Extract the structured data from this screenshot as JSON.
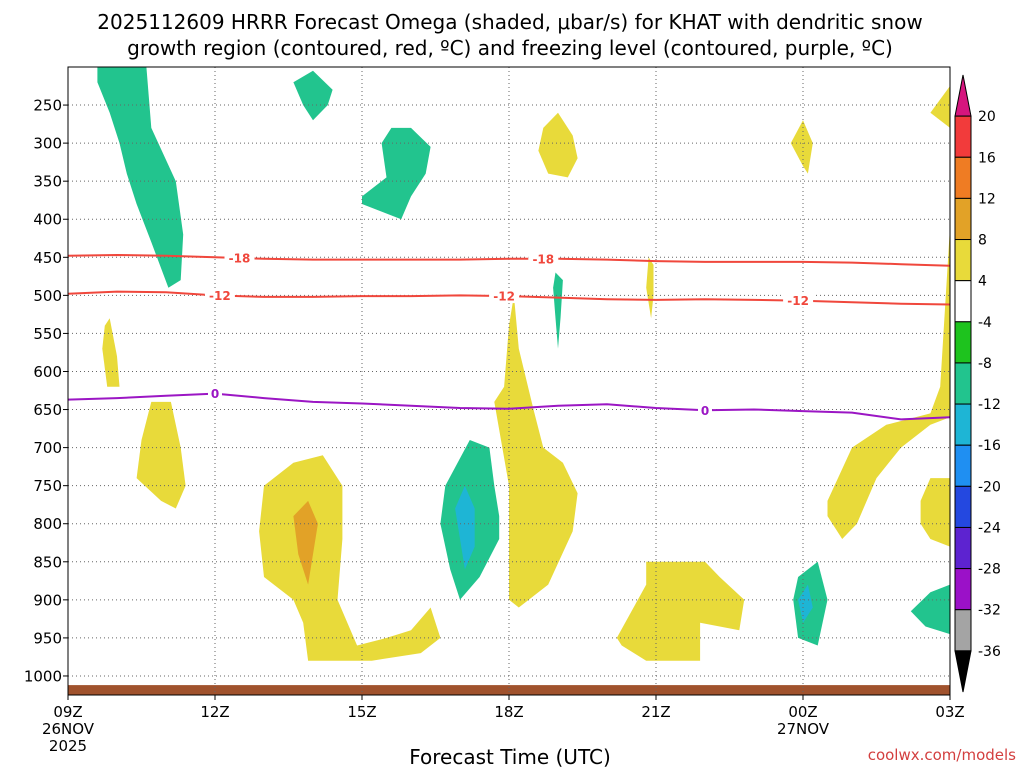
{
  "chart_data": {
    "type": "contour",
    "title_lines": [
      "2025112609 HRRR Forecast Omega (shaded, μbar/s) for KHAT with dendritic snow",
      "growth region (contoured, red, ºC) and freezing level (contoured, purple, ºC)"
    ],
    "xlabel": "Forecast Time (UTC)",
    "credit": "coolwx.com/models",
    "x_range_hours": [
      0,
      18
    ],
    "x_ticks": [
      {
        "hour": 0,
        "lines": [
          "09Z",
          "26NOV",
          "2025"
        ]
      },
      {
        "hour": 3,
        "lines": [
          "12Z"
        ]
      },
      {
        "hour": 6,
        "lines": [
          "15Z"
        ]
      },
      {
        "hour": 9,
        "lines": [
          "18Z"
        ]
      },
      {
        "hour": 12,
        "lines": [
          "21Z"
        ]
      },
      {
        "hour": 15,
        "lines": [
          "00Z",
          "27NOV"
        ]
      },
      {
        "hour": 18,
        "lines": [
          "03Z"
        ]
      }
    ],
    "y_axis": {
      "unit": "hPa",
      "range": [
        1025,
        200
      ],
      "ticks": [
        250,
        300,
        350,
        400,
        450,
        500,
        550,
        600,
        650,
        700,
        750,
        800,
        850,
        900,
        950,
        1000
      ]
    },
    "colorbar": {
      "levels": [
        20,
        16,
        12,
        8,
        4,
        -4,
        -8,
        -12,
        -16,
        -20,
        -24,
        -28,
        -32,
        -36
      ],
      "colors": [
        "#d6157e",
        "#f23b3b",
        "#ef7c23",
        "#e2a227",
        "#e8da3a",
        "#ffffff",
        "#1ec31e",
        "#22c48e",
        "#1eb5d5",
        "#1f8ff2",
        "#2448e0",
        "#5d23d0",
        "#9b11c8",
        "#a4a4a4",
        "#000000"
      ],
      "extend": "both"
    },
    "lines": [
      {
        "name": "-18 C isotherm",
        "color": "#f0473c",
        "label": "-18",
        "points": [
          [
            0,
            448
          ],
          [
            1,
            447
          ],
          [
            2,
            448
          ],
          [
            3,
            450
          ],
          [
            4,
            452
          ],
          [
            5,
            453
          ],
          [
            6,
            453
          ],
          [
            7,
            453
          ],
          [
            8,
            453
          ],
          [
            9,
            452
          ],
          [
            10,
            452
          ],
          [
            11,
            453
          ],
          [
            12,
            455
          ],
          [
            13,
            456
          ],
          [
            14,
            456
          ],
          [
            15,
            456
          ],
          [
            16,
            457
          ],
          [
            17,
            459
          ],
          [
            18,
            461
          ]
        ],
        "label_hours": [
          3.5,
          9.7
        ]
      },
      {
        "name": "-12 C isotherm",
        "color": "#f0473c",
        "label": "-12",
        "points": [
          [
            0,
            498
          ],
          [
            1,
            495
          ],
          [
            2,
            496
          ],
          [
            3,
            500
          ],
          [
            4,
            502
          ],
          [
            5,
            502
          ],
          [
            6,
            501
          ],
          [
            7,
            501
          ],
          [
            8,
            500
          ],
          [
            9,
            501
          ],
          [
            10,
            503
          ],
          [
            11,
            505
          ],
          [
            12,
            506
          ],
          [
            13,
            505
          ],
          [
            14,
            506
          ],
          [
            15,
            507
          ],
          [
            16,
            509
          ],
          [
            17,
            511
          ],
          [
            18,
            512
          ]
        ],
        "label_hours": [
          3.1,
          8.9,
          14.9
        ]
      },
      {
        "name": "0 C freezing level",
        "color": "#9b16c4",
        "label": "0",
        "points": [
          [
            0,
            637
          ],
          [
            1,
            635
          ],
          [
            2,
            632
          ],
          [
            3,
            629
          ],
          [
            4,
            635
          ],
          [
            5,
            640
          ],
          [
            6,
            642
          ],
          [
            7,
            645
          ],
          [
            8,
            648
          ],
          [
            9,
            649
          ],
          [
            10,
            645
          ],
          [
            11,
            643
          ],
          [
            12,
            648
          ],
          [
            13,
            651
          ],
          [
            14,
            650
          ],
          [
            15,
            652
          ],
          [
            16,
            654
          ],
          [
            17,
            663
          ],
          [
            18,
            660
          ]
        ],
        "label_hours": [
          3.0,
          13.0
        ]
      }
    ],
    "omega_regions": [
      {
        "level": -8,
        "points": [
          [
            0.6,
            200
          ],
          [
            1.6,
            200
          ],
          [
            1.7,
            280
          ],
          [
            2.2,
            350
          ],
          [
            2.35,
            420
          ],
          [
            2.3,
            480
          ],
          [
            2.05,
            490
          ],
          [
            1.7,
            430
          ],
          [
            1.4,
            380
          ],
          [
            1.2,
            340
          ],
          [
            1.05,
            300
          ],
          [
            0.85,
            260
          ],
          [
            0.6,
            220
          ]
        ]
      },
      {
        "level": -8,
        "points": [
          [
            4.6,
            220
          ],
          [
            5.0,
            205
          ],
          [
            5.4,
            230
          ],
          [
            5.3,
            250
          ],
          [
            5.0,
            270
          ],
          [
            4.8,
            250
          ]
        ]
      },
      {
        "level": -8,
        "points": [
          [
            6.0,
            370
          ],
          [
            6.5,
            345
          ],
          [
            6.4,
            300
          ],
          [
            6.6,
            280
          ],
          [
            7.0,
            280
          ],
          [
            7.4,
            305
          ],
          [
            7.3,
            340
          ],
          [
            7.0,
            370
          ],
          [
            6.8,
            400
          ],
          [
            6.4,
            390
          ],
          [
            6.0,
            380
          ]
        ]
      },
      {
        "level": -8,
        "points": [
          [
            17.2,
            915
          ],
          [
            17.6,
            890
          ],
          [
            18,
            880
          ],
          [
            18,
            945
          ],
          [
            17.5,
            935
          ]
        ]
      },
      {
        "level": -8,
        "points": [
          [
            9.95,
            470
          ],
          [
            10.1,
            480
          ],
          [
            10.05,
            530
          ],
          [
            10.0,
            570
          ],
          [
            9.95,
            530
          ],
          [
            9.9,
            490
          ]
        ]
      },
      {
        "level": -8,
        "points": [
          [
            8.8,
            790
          ],
          [
            8.7,
            750
          ],
          [
            8.6,
            700
          ],
          [
            8.2,
            690
          ],
          [
            7.7,
            750
          ],
          [
            7.6,
            800
          ],
          [
            7.8,
            860
          ],
          [
            8.0,
            900
          ],
          [
            8.4,
            870
          ],
          [
            8.8,
            820
          ]
        ]
      },
      {
        "level": -12,
        "points": [
          [
            8.1,
            750
          ],
          [
            7.9,
            780
          ],
          [
            8.0,
            820
          ],
          [
            8.1,
            860
          ],
          [
            8.3,
            830
          ],
          [
            8.3,
            780
          ]
        ]
      },
      {
        "level": -8,
        "points": [
          [
            14.9,
            870
          ],
          [
            15.3,
            850
          ],
          [
            15.5,
            900
          ],
          [
            15.3,
            960
          ],
          [
            14.9,
            950
          ],
          [
            14.8,
            900
          ]
        ]
      },
      {
        "level": -12,
        "points": [
          [
            14.9,
            900
          ],
          [
            15.1,
            880
          ],
          [
            15.2,
            910
          ],
          [
            15.0,
            930
          ]
        ]
      },
      {
        "level": 4,
        "points": [
          [
            0.75,
            540
          ],
          [
            0.85,
            530
          ],
          [
            1.0,
            580
          ],
          [
            1.05,
            620
          ],
          [
            0.8,
            620
          ],
          [
            0.7,
            570
          ]
        ]
      },
      {
        "level": 4,
        "points": [
          [
            1.5,
            690
          ],
          [
            1.7,
            640
          ],
          [
            2.1,
            640
          ],
          [
            2.3,
            700
          ],
          [
            2.4,
            750
          ],
          [
            2.2,
            780
          ],
          [
            1.9,
            770
          ],
          [
            1.4,
            740
          ]
        ]
      },
      {
        "level": 4,
        "points": [
          [
            4.0,
            750
          ],
          [
            4.6,
            720
          ],
          [
            5.2,
            710
          ],
          [
            5.6,
            750
          ],
          [
            5.6,
            820
          ],
          [
            5.5,
            900
          ],
          [
            5.9,
            960
          ],
          [
            6.5,
            950
          ],
          [
            7.0,
            940
          ],
          [
            7.4,
            910
          ],
          [
            7.6,
            950
          ],
          [
            7.2,
            970
          ],
          [
            6.2,
            980
          ],
          [
            4.9,
            980
          ],
          [
            4.8,
            930
          ],
          [
            4.6,
            900
          ],
          [
            4.0,
            870
          ],
          [
            3.9,
            810
          ]
        ]
      },
      {
        "level": 8,
        "points": [
          [
            4.6,
            790
          ],
          [
            4.9,
            770
          ],
          [
            5.1,
            800
          ],
          [
            5.0,
            840
          ],
          [
            4.9,
            880
          ],
          [
            4.7,
            840
          ]
        ]
      },
      {
        "level": 4,
        "points": [
          [
            10.0,
            260
          ],
          [
            10.3,
            290
          ],
          [
            10.4,
            320
          ],
          [
            10.2,
            345
          ],
          [
            9.8,
            340
          ],
          [
            9.6,
            310
          ],
          [
            9.7,
            280
          ]
        ]
      },
      {
        "level": 4,
        "points": [
          [
            8.9,
            620
          ],
          [
            9.0,
            540
          ],
          [
            9.1,
            500
          ],
          [
            9.2,
            570
          ],
          [
            9.5,
            650
          ],
          [
            9.7,
            700
          ],
          [
            10.1,
            720
          ],
          [
            10.4,
            760
          ],
          [
            10.3,
            810
          ],
          [
            9.8,
            880
          ],
          [
            9.2,
            910
          ],
          [
            9.0,
            900
          ],
          [
            9.0,
            850
          ],
          [
            9.0,
            750
          ],
          [
            8.7,
            640
          ]
        ]
      },
      {
        "level": 4,
        "points": [
          [
            11.85,
            450
          ],
          [
            11.95,
            460
          ],
          [
            11.95,
            500
          ],
          [
            11.9,
            530
          ],
          [
            11.8,
            490
          ]
        ]
      },
      {
        "level": 4,
        "points": [
          [
            11.2,
            950
          ],
          [
            11.8,
            880
          ],
          [
            11.8,
            850
          ],
          [
            13.0,
            850
          ],
          [
            13.3,
            870
          ],
          [
            13.8,
            900
          ],
          [
            13.7,
            940
          ],
          [
            12.9,
            930
          ],
          [
            12.9,
            980
          ],
          [
            11.8,
            980
          ],
          [
            11.3,
            960
          ]
        ]
      },
      {
        "level": 4,
        "points": [
          [
            14.75,
            300
          ],
          [
            15.0,
            270
          ],
          [
            15.2,
            300
          ],
          [
            15.1,
            340
          ],
          [
            15.0,
            330
          ]
        ]
      },
      {
        "level": 4,
        "points": [
          [
            17.6,
            260
          ],
          [
            18,
            225
          ],
          [
            18,
            280
          ]
        ]
      },
      {
        "level": 4,
        "points": [
          [
            15.5,
            770
          ],
          [
            16.0,
            700
          ],
          [
            16.7,
            670
          ],
          [
            17.6,
            655
          ],
          [
            17.8,
            620
          ],
          [
            18,
            410
          ],
          [
            18,
            440
          ],
          [
            18,
            660
          ],
          [
            17.6,
            670
          ],
          [
            17.0,
            700
          ],
          [
            16.5,
            740
          ],
          [
            16.1,
            800
          ],
          [
            15.8,
            820
          ],
          [
            15.5,
            790
          ]
        ]
      },
      {
        "level": 4,
        "points": [
          [
            17.4,
            770
          ],
          [
            17.6,
            740
          ],
          [
            18,
            740
          ],
          [
            18,
            830
          ],
          [
            17.6,
            820
          ],
          [
            17.4,
            800
          ]
        ]
      }
    ],
    "surface_band": {
      "label": "ground",
      "from_hpa": 1012,
      "to_hpa": 1025,
      "color": "#a0522d"
    }
  }
}
